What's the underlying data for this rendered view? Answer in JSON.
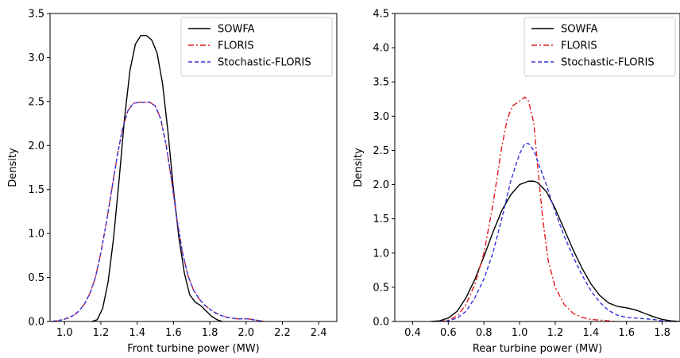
{
  "chart_data": [
    {
      "type": "line",
      "xlabel": "Front turbine power (MW)",
      "ylabel": "Density",
      "xlim": [
        0.92,
        2.5
      ],
      "ylim": [
        0,
        3.5
      ],
      "xticks": [
        1.0,
        1.2,
        1.4,
        1.6,
        1.8,
        2.0,
        2.2,
        2.4
      ],
      "xtick_labels": [
        "1.0",
        "1.2",
        "1.4",
        "1.6",
        "1.8",
        "2.0",
        "2.2",
        "2.4"
      ],
      "yticks": [
        0.0,
        0.5,
        1.0,
        1.5,
        2.0,
        2.5,
        3.0,
        3.5
      ],
      "ytick_labels": [
        "0.0",
        "0.5",
        "1.0",
        "1.5",
        "2.0",
        "2.5",
        "3.0",
        "3.5"
      ],
      "grid": false,
      "legend_position": "top-right",
      "series": [
        {
          "name": "SOWFA",
          "color": "#000000",
          "style": "solid",
          "x": [
            1.15,
            1.18,
            1.21,
            1.24,
            1.27,
            1.3,
            1.33,
            1.36,
            1.39,
            1.42,
            1.45,
            1.48,
            1.51,
            1.54,
            1.57,
            1.6,
            1.63,
            1.66,
            1.69,
            1.72,
            1.75,
            1.78,
            1.81,
            1.84,
            1.87
          ],
          "y": [
            0.0,
            0.02,
            0.15,
            0.45,
            0.95,
            1.6,
            2.3,
            2.85,
            3.15,
            3.25,
            3.25,
            3.2,
            3.05,
            2.7,
            2.15,
            1.5,
            0.95,
            0.55,
            0.3,
            0.22,
            0.18,
            0.12,
            0.06,
            0.02,
            0.0
          ]
        },
        {
          "name": "FLORIS",
          "color": "#e41a1c",
          "style": "dashdot",
          "x": [
            0.93,
            0.96,
            0.99,
            1.02,
            1.05,
            1.08,
            1.11,
            1.14,
            1.17,
            1.2,
            1.23,
            1.26,
            1.29,
            1.32,
            1.35,
            1.38,
            1.41,
            1.44,
            1.47,
            1.5,
            1.53,
            1.56,
            1.59,
            1.62,
            1.65,
            1.68,
            1.71,
            1.74,
            1.77,
            1.8,
            1.83,
            1.86,
            1.89,
            1.92,
            1.95,
            1.98,
            2.01,
            2.04,
            2.07,
            2.1
          ],
          "y": [
            0.0,
            0.01,
            0.02,
            0.04,
            0.07,
            0.12,
            0.2,
            0.32,
            0.5,
            0.78,
            1.12,
            1.5,
            1.88,
            2.2,
            2.4,
            2.48,
            2.49,
            2.49,
            2.49,
            2.45,
            2.3,
            2.0,
            1.6,
            1.15,
            0.78,
            0.52,
            0.36,
            0.26,
            0.19,
            0.14,
            0.1,
            0.07,
            0.05,
            0.04,
            0.03,
            0.03,
            0.03,
            0.02,
            0.01,
            0.0
          ]
        },
        {
          "name": "Stochastic-FLORIS",
          "color": "#3333dd",
          "style": "dashed",
          "x": [
            0.93,
            0.96,
            0.99,
            1.02,
            1.05,
            1.08,
            1.11,
            1.14,
            1.17,
            1.2,
            1.23,
            1.26,
            1.29,
            1.32,
            1.35,
            1.38,
            1.41,
            1.44,
            1.47,
            1.5,
            1.53,
            1.56,
            1.59,
            1.62,
            1.65,
            1.68,
            1.71,
            1.74,
            1.77,
            1.8,
            1.83,
            1.86,
            1.89,
            1.92,
            1.95,
            1.98,
            2.01,
            2.04,
            2.07,
            2.1
          ],
          "y": [
            0.0,
            0.01,
            0.02,
            0.04,
            0.07,
            0.12,
            0.2,
            0.32,
            0.5,
            0.78,
            1.12,
            1.5,
            1.88,
            2.2,
            2.4,
            2.48,
            2.49,
            2.49,
            2.49,
            2.45,
            2.3,
            2.0,
            1.6,
            1.15,
            0.78,
            0.52,
            0.36,
            0.26,
            0.19,
            0.14,
            0.1,
            0.07,
            0.05,
            0.04,
            0.03,
            0.03,
            0.03,
            0.02,
            0.01,
            0.0
          ]
        }
      ]
    },
    {
      "type": "line",
      "xlabel": "Rear turbine power (MW)",
      "ylabel": "Density",
      "xlim": [
        0.3,
        1.9
      ],
      "ylim": [
        0,
        4.5
      ],
      "xticks": [
        0.4,
        0.6,
        0.8,
        1.0,
        1.2,
        1.4,
        1.6,
        1.8
      ],
      "xtick_labels": [
        "0.4",
        "0.6",
        "0.8",
        "1.0",
        "1.2",
        "1.4",
        "1.6",
        "1.8"
      ],
      "yticks": [
        0.0,
        0.5,
        1.0,
        1.5,
        2.0,
        2.5,
        3.0,
        3.5,
        4.0,
        4.5
      ],
      "ytick_labels": [
        "0.0",
        "0.5",
        "1.0",
        "1.5",
        "2.0",
        "2.5",
        "3.0",
        "3.5",
        "4.0",
        "4.5"
      ],
      "grid": false,
      "legend_position": "top-right",
      "series": [
        {
          "name": "SOWFA",
          "color": "#000000",
          "style": "solid",
          "x": [
            0.5,
            0.55,
            0.6,
            0.65,
            0.7,
            0.75,
            0.8,
            0.85,
            0.9,
            0.95,
            1.0,
            1.05,
            1.08,
            1.1,
            1.15,
            1.2,
            1.25,
            1.3,
            1.35,
            1.4,
            1.45,
            1.5,
            1.55,
            1.6,
            1.65,
            1.7,
            1.75,
            1.8,
            1.85,
            1.9
          ],
          "y": [
            0.0,
            0.01,
            0.05,
            0.15,
            0.35,
            0.62,
            0.95,
            1.3,
            1.62,
            1.85,
            2.0,
            2.05,
            2.05,
            2.03,
            1.9,
            1.65,
            1.35,
            1.05,
            0.78,
            0.55,
            0.38,
            0.27,
            0.22,
            0.2,
            0.17,
            0.12,
            0.07,
            0.03,
            0.01,
            0.0
          ]
        },
        {
          "name": "FLORIS",
          "color": "#e41a1c",
          "style": "dashdot",
          "x": [
            0.55,
            0.6,
            0.65,
            0.7,
            0.75,
            0.8,
            0.85,
            0.9,
            0.93,
            0.96,
            1.0,
            1.03,
            1.05,
            1.08,
            1.1,
            1.13,
            1.16,
            1.2,
            1.25,
            1.3,
            1.35,
            1.4,
            1.45,
            1.5,
            1.55
          ],
          "y": [
            0.0,
            0.02,
            0.08,
            0.25,
            0.55,
            1.0,
            1.7,
            2.55,
            2.95,
            3.15,
            3.22,
            3.28,
            3.22,
            2.9,
            2.3,
            1.5,
            0.9,
            0.5,
            0.25,
            0.12,
            0.06,
            0.03,
            0.02,
            0.01,
            0.0
          ]
        },
        {
          "name": "Stochastic-FLORIS",
          "color": "#3333dd",
          "style": "dashed",
          "x": [
            0.55,
            0.6,
            0.65,
            0.7,
            0.75,
            0.8,
            0.85,
            0.9,
            0.95,
            1.0,
            1.03,
            1.05,
            1.08,
            1.1,
            1.15,
            1.2,
            1.25,
            1.3,
            1.35,
            1.4,
            1.45,
            1.5,
            1.55,
            1.6,
            1.65,
            1.7,
            1.75,
            1.8,
            1.85
          ],
          "y": [
            0.0,
            0.01,
            0.05,
            0.15,
            0.35,
            0.62,
            1.0,
            1.5,
            2.05,
            2.45,
            2.6,
            2.6,
            2.5,
            2.35,
            2.0,
            1.6,
            1.25,
            0.95,
            0.68,
            0.45,
            0.28,
            0.16,
            0.09,
            0.06,
            0.05,
            0.04,
            0.03,
            0.01,
            0.0
          ]
        }
      ]
    }
  ]
}
